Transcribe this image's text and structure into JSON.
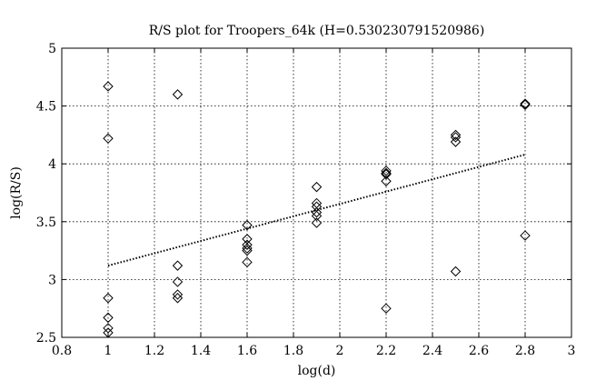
{
  "chart_data": {
    "type": "scatter",
    "title": "R/S plot for Troopers_64k (H=0.530230791520986)",
    "xlabel": "log(d)",
    "ylabel": "log(R/S)",
    "xlim": [
      0.8,
      3
    ],
    "ylim": [
      2.5,
      5
    ],
    "xticks": [
      "0.8",
      "1",
      "1.2",
      "1.4",
      "1.6",
      "1.8",
      "2",
      "2.2",
      "2.4",
      "2.6",
      "2.8",
      "3"
    ],
    "yticks": [
      "2.5",
      "3",
      "3.5",
      "4",
      "4.5",
      "5"
    ],
    "grid": true,
    "marker": "diamond",
    "series": [
      {
        "points": [
          [
            1.0,
            4.67
          ],
          [
            1.0,
            4.22
          ],
          [
            1.0,
            2.84
          ],
          [
            1.0,
            2.67
          ],
          [
            1.0,
            2.58
          ],
          [
            1.0,
            2.54
          ],
          [
            1.3,
            4.6
          ],
          [
            1.3,
            3.12
          ],
          [
            1.3,
            2.98
          ],
          [
            1.3,
            2.87
          ],
          [
            1.3,
            2.84
          ],
          [
            1.6,
            3.47
          ],
          [
            1.6,
            3.35
          ],
          [
            1.6,
            3.3
          ],
          [
            1.6,
            3.27
          ],
          [
            1.6,
            3.25
          ],
          [
            1.6,
            3.15
          ],
          [
            1.9,
            3.8
          ],
          [
            1.9,
            3.66
          ],
          [
            1.9,
            3.63
          ],
          [
            1.9,
            3.58
          ],
          [
            1.9,
            3.55
          ],
          [
            1.9,
            3.49
          ],
          [
            2.2,
            3.94
          ],
          [
            2.2,
            3.92
          ],
          [
            2.2,
            3.91
          ],
          [
            2.2,
            3.85
          ],
          [
            2.2,
            2.75
          ],
          [
            2.5,
            4.25
          ],
          [
            2.5,
            4.23
          ],
          [
            2.5,
            4.19
          ],
          [
            2.5,
            3.07
          ],
          [
            2.8,
            4.52
          ],
          [
            2.8,
            4.51
          ],
          [
            2.8,
            3.38
          ]
        ]
      }
    ],
    "fit_line": {
      "style": "dotted",
      "x": [
        1.0,
        2.8
      ],
      "y": [
        3.12,
        4.08
      ]
    }
  }
}
